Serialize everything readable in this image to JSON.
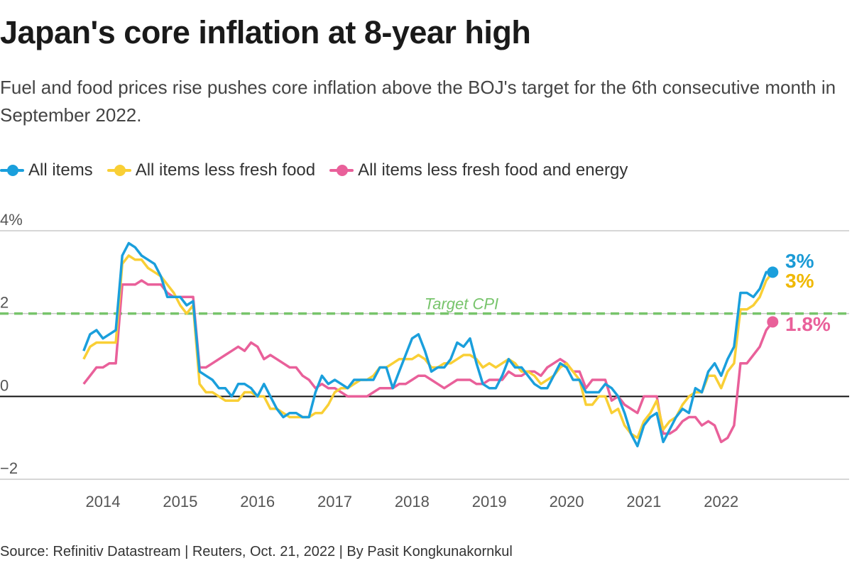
{
  "title": "Japan's core inflation at 8-year high",
  "subtitle": "Fuel and food prices rise pushes core inflation above the BOJ's target for the 6th consecutive month in September 2022.",
  "source": "Source: Refinitiv Datastream | Reuters, Oct. 21, 2022 | By Pasit Kongkunakornkul",
  "chart_data": {
    "type": "line",
    "title": "Japan's core inflation at 8-year high",
    "xlabel": "",
    "ylabel": "",
    "ylim": [
      -2,
      4
    ],
    "y_ticks": [
      {
        "value": 4,
        "label": "4%"
      },
      {
        "value": 2,
        "label": "2"
      },
      {
        "value": 0,
        "label": "0"
      },
      {
        "value": -2,
        "label": "−2"
      }
    ],
    "x_ticks": [
      "2014",
      "2015",
      "2016",
      "2017",
      "2018",
      "2019",
      "2020",
      "2021",
      "2022"
    ],
    "grid": true,
    "legend_position": "top-left",
    "reference_line": {
      "value": 2,
      "label": "Target CPI",
      "color": "#77c46b"
    },
    "x": [
      "2013-10",
      "2013-11",
      "2013-12",
      "2014-01",
      "2014-02",
      "2014-03",
      "2014-04",
      "2014-05",
      "2014-06",
      "2014-07",
      "2014-08",
      "2014-09",
      "2014-10",
      "2014-11",
      "2014-12",
      "2015-01",
      "2015-02",
      "2015-03",
      "2015-04",
      "2015-05",
      "2015-06",
      "2015-07",
      "2015-08",
      "2015-09",
      "2015-10",
      "2015-11",
      "2015-12",
      "2016-01",
      "2016-02",
      "2016-03",
      "2016-04",
      "2016-05",
      "2016-06",
      "2016-07",
      "2016-08",
      "2016-09",
      "2016-10",
      "2016-11",
      "2016-12",
      "2017-01",
      "2017-02",
      "2017-03",
      "2017-04",
      "2017-05",
      "2017-06",
      "2017-07",
      "2017-08",
      "2017-09",
      "2017-10",
      "2017-11",
      "2017-12",
      "2018-01",
      "2018-02",
      "2018-03",
      "2018-04",
      "2018-05",
      "2018-06",
      "2018-07",
      "2018-08",
      "2018-09",
      "2018-10",
      "2018-11",
      "2018-12",
      "2019-01",
      "2019-02",
      "2019-03",
      "2019-04",
      "2019-05",
      "2019-06",
      "2019-07",
      "2019-08",
      "2019-09",
      "2019-10",
      "2019-11",
      "2019-12",
      "2020-01",
      "2020-02",
      "2020-03",
      "2020-04",
      "2020-05",
      "2020-06",
      "2020-07",
      "2020-08",
      "2020-09",
      "2020-10",
      "2020-11",
      "2020-12",
      "2021-01",
      "2021-02",
      "2021-03",
      "2021-04",
      "2021-05",
      "2021-06",
      "2021-07",
      "2021-08",
      "2021-09",
      "2021-10",
      "2021-11",
      "2021-12",
      "2022-01",
      "2022-02",
      "2022-03",
      "2022-04",
      "2022-05",
      "2022-06",
      "2022-07",
      "2022-08",
      "2022-09"
    ],
    "series": [
      {
        "name": "All items",
        "color": "#1a9fdc",
        "end_label": "3%",
        "label_color": "#1a9ad6",
        "values": [
          1.1,
          1.5,
          1.6,
          1.4,
          1.5,
          1.6,
          3.4,
          3.7,
          3.6,
          3.4,
          3.3,
          3.2,
          2.9,
          2.4,
          2.4,
          2.4,
          2.2,
          2.3,
          0.6,
          0.5,
          0.4,
          0.2,
          0.2,
          0.0,
          0.3,
          0.3,
          0.2,
          0.0,
          0.3,
          0.0,
          -0.3,
          -0.5,
          -0.4,
          -0.4,
          -0.5,
          -0.5,
          0.1,
          0.5,
          0.3,
          0.4,
          0.3,
          0.2,
          0.4,
          0.4,
          0.4,
          0.4,
          0.7,
          0.7,
          0.2,
          0.6,
          1.0,
          1.4,
          1.5,
          1.1,
          0.6,
          0.7,
          0.7,
          0.9,
          1.3,
          1.2,
          1.4,
          0.8,
          0.3,
          0.2,
          0.2,
          0.5,
          0.9,
          0.7,
          0.7,
          0.5,
          0.3,
          0.2,
          0.2,
          0.5,
          0.8,
          0.7,
          0.4,
          0.4,
          0.1,
          0.1,
          0.1,
          0.3,
          0.2,
          0.0,
          -0.4,
          -0.9,
          -1.2,
          -0.7,
          -0.5,
          -0.4,
          -1.1,
          -0.8,
          -0.5,
          -0.3,
          -0.4,
          0.2,
          0.1,
          0.6,
          0.8,
          0.5,
          0.9,
          1.2,
          2.5,
          2.5,
          2.4,
          2.6,
          3.0,
          3.0
        ]
      },
      {
        "name": "All items less fresh food",
        "color": "#f9cf35",
        "end_label": "3%",
        "label_color": "#f0b800",
        "values": [
          0.9,
          1.2,
          1.3,
          1.3,
          1.3,
          1.3,
          3.2,
          3.4,
          3.3,
          3.3,
          3.1,
          3.0,
          2.9,
          2.7,
          2.5,
          2.2,
          2.0,
          2.2,
          0.3,
          0.1,
          0.1,
          0.0,
          -0.1,
          -0.1,
          -0.1,
          0.1,
          0.1,
          0.0,
          0.0,
          -0.3,
          -0.3,
          -0.4,
          -0.5,
          -0.5,
          -0.5,
          -0.5,
          -0.4,
          -0.4,
          -0.2,
          0.1,
          0.2,
          0.2,
          0.3,
          0.4,
          0.4,
          0.5,
          0.7,
          0.7,
          0.8,
          0.9,
          0.9,
          0.9,
          1.0,
          0.9,
          0.7,
          0.7,
          0.8,
          0.8,
          0.9,
          1.0,
          1.0,
          0.9,
          0.7,
          0.8,
          0.7,
          0.8,
          0.9,
          0.8,
          0.6,
          0.6,
          0.5,
          0.3,
          0.4,
          0.5,
          0.7,
          0.8,
          0.6,
          0.4,
          -0.2,
          -0.2,
          0.0,
          0.0,
          -0.4,
          -0.3,
          -0.7,
          -0.9,
          -1.0,
          -0.6,
          -0.4,
          -0.1,
          -0.8,
          -0.6,
          -0.5,
          -0.2,
          0.0,
          0.1,
          0.1,
          0.5,
          0.5,
          0.2,
          0.6,
          0.8,
          2.1,
          2.1,
          2.2,
          2.4,
          2.8,
          3.0
        ]
      },
      {
        "name": "All items less fresh food and energy",
        "color": "#e9609a",
        "end_label": "1.8%",
        "label_color": "#e9609a",
        "values": [
          0.3,
          0.5,
          0.7,
          0.7,
          0.8,
          0.8,
          2.7,
          2.7,
          2.7,
          2.8,
          2.7,
          2.7,
          2.7,
          2.5,
          2.4,
          2.4,
          2.4,
          2.4,
          0.7,
          0.7,
          0.8,
          0.9,
          1.0,
          1.1,
          1.2,
          1.1,
          1.3,
          1.2,
          0.9,
          1.0,
          0.9,
          0.8,
          0.7,
          0.7,
          0.5,
          0.4,
          0.2,
          0.3,
          0.2,
          0.2,
          0.1,
          0.0,
          0.0,
          0.0,
          0.0,
          0.1,
          0.2,
          0.2,
          0.2,
          0.3,
          0.3,
          0.4,
          0.5,
          0.5,
          0.4,
          0.3,
          0.2,
          0.3,
          0.4,
          0.4,
          0.4,
          0.3,
          0.3,
          0.4,
          0.4,
          0.4,
          0.6,
          0.5,
          0.5,
          0.6,
          0.6,
          0.5,
          0.7,
          0.8,
          0.9,
          0.8,
          0.6,
          0.6,
          0.2,
          0.4,
          0.4,
          0.4,
          -0.1,
          0.0,
          -0.2,
          -0.3,
          -0.4,
          0.0,
          0.0,
          0.0,
          -0.9,
          -0.9,
          -0.8,
          -0.6,
          -0.5,
          -0.5,
          -0.7,
          -0.6,
          -0.7,
          -1.1,
          -1.0,
          -0.7,
          0.8,
          0.8,
          1.0,
          1.2,
          1.6,
          1.8
        ]
      }
    ]
  }
}
